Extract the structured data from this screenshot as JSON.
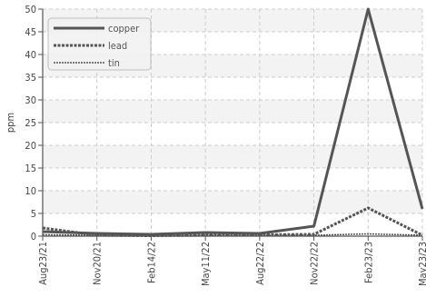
{
  "chart_data": {
    "type": "line",
    "title": "",
    "xlabel": "",
    "ylabel": "ppm",
    "ylim": [
      0,
      50
    ],
    "yticks": [
      0,
      5,
      10,
      15,
      20,
      25,
      30,
      35,
      40,
      45,
      50
    ],
    "categories": [
      "Aug23/21",
      "Nov20/21",
      "Feb14/22",
      "May11/22",
      "Aug22/22",
      "Nov22/22",
      "Feb23/23",
      "May23/23"
    ],
    "grid": true,
    "legend_position": "top-left",
    "series": [
      {
        "name": "copper",
        "color": "#555555",
        "style": "solid",
        "values": [
          1.0,
          0.6,
          0.4,
          0.8,
          0.6,
          2.2,
          50,
          6.0
        ]
      },
      {
        "name": "lead",
        "color": "#555555",
        "style": "dashed",
        "values": [
          1.8,
          0.2,
          0.1,
          0.2,
          0.3,
          0.4,
          6.2,
          0.2
        ]
      },
      {
        "name": "tin",
        "color": "#555555",
        "style": "dotted",
        "values": [
          0.3,
          0.2,
          0.1,
          0.2,
          0.2,
          0.2,
          0.5,
          0.2
        ]
      }
    ]
  }
}
